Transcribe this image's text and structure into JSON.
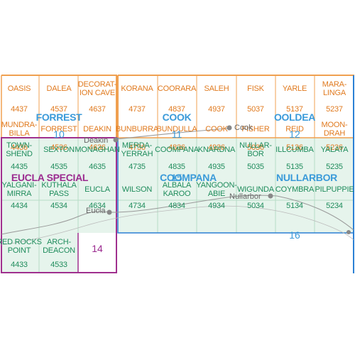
{
  "colors": {
    "orange_text": "#e07a1f",
    "orange_line": "#f0a050",
    "green_text": "#1f8c5c",
    "green_fill": "#e6f4ec",
    "blue_text": "#3a9ad9",
    "blue_line": "#2a7fd4",
    "purple_text": "#9b2a8f",
    "purple_line": "#a0308e",
    "gray": "#777777"
  },
  "tiles": [
    {
      "name": "OASIS",
      "code": "4437",
      "color": "orange"
    },
    {
      "name": "DALEA",
      "code": "4537",
      "color": "orange"
    },
    {
      "name": "DECORAT-\nION CAVE",
      "code": "4637",
      "color": "orange"
    },
    {
      "name": "KORANA",
      "code": "4737",
      "color": "orange"
    },
    {
      "name": "COORARA",
      "code": "4837",
      "color": "orange"
    },
    {
      "name": "SALEH",
      "code": "4937",
      "color": "orange"
    },
    {
      "name": "FISK",
      "code": "5037",
      "color": "orange"
    },
    {
      "name": "YARLE",
      "code": "5137",
      "color": "orange"
    },
    {
      "name": "MARA-\nLINGA",
      "code": "5237",
      "color": "orange"
    },
    {
      "name": "MUNDRA-\nBILLA",
      "code": "4436",
      "color": "orange"
    },
    {
      "name": "FORREST",
      "code": "4536",
      "color": "orange"
    },
    {
      "name": "DEAKIN",
      "code": "4636",
      "color": "orange"
    },
    {
      "name": "BUNBURRA",
      "code": "4736",
      "color": "orange"
    },
    {
      "name": "BUNDULLA",
      "code": "4836",
      "color": "orange"
    },
    {
      "name": "COOK",
      "code": "4936",
      "color": "orange"
    },
    {
      "name": "FISHER",
      "code": "5036",
      "color": "orange"
    },
    {
      "name": "REID",
      "code": "5136",
      "color": "orange"
    },
    {
      "name": "MOON-\nDRAH",
      "code": "5236",
      "color": "orange"
    },
    {
      "name": "TOWN-\nSHEND",
      "code": "4435",
      "color": "green"
    },
    {
      "name": "SEXTON",
      "code": "4535",
      "color": "green"
    },
    {
      "name": "MONAGHAN",
      "code": "4635",
      "color": "green"
    },
    {
      "name": "MERDA-\nYERRAH",
      "code": "4735",
      "color": "green"
    },
    {
      "name": "COOMPANA",
      "code": "4835",
      "color": "green"
    },
    {
      "name": "KNARDNA",
      "code": "4935",
      "color": "green"
    },
    {
      "name": "NULLAR-\nBOR",
      "code": "5035",
      "color": "green"
    },
    {
      "name": "ILLCUMBA",
      "code": "5135",
      "color": "green"
    },
    {
      "name": "YALATA",
      "code": "5235",
      "color": "green"
    },
    {
      "name": "YALGANI-\nMIRRA",
      "code": "4434",
      "color": "green"
    },
    {
      "name": "KUTHALA\nPASS",
      "code": "4534",
      "color": "green"
    },
    {
      "name": "EUCLA",
      "code": "4634",
      "color": "green"
    },
    {
      "name": "WILSON",
      "code": "4734",
      "color": "green"
    },
    {
      "name": "ALBALA\nKAROO",
      "code": "4834",
      "color": "green"
    },
    {
      "name": "YANGOON-\nABIE",
      "code": "4934",
      "color": "green"
    },
    {
      "name": "WIGUNDA",
      "code": "5034",
      "color": "green"
    },
    {
      "name": "COYMBRA",
      "code": "5134",
      "color": "green"
    },
    {
      "name": "PILPUPPIE",
      "code": "5234",
      "color": "green"
    },
    {
      "name": "RED ROCKS\nPOINT",
      "code": "4433",
      "color": "green"
    },
    {
      "name": "ARCH-\nDEACON",
      "code": "4533",
      "color": "green"
    }
  ],
  "sheet_numbers": [
    "10",
    "11",
    "12",
    "15",
    "16",
    "14"
  ],
  "regions": [
    "FORREST",
    "COOK",
    "OOLDEA",
    "EUCLA SPECIAL",
    "COOMPANA",
    "NULLARBOR"
  ],
  "towns": [
    "Deakin",
    "Cook",
    "Nullarbor",
    "Eucla"
  ]
}
